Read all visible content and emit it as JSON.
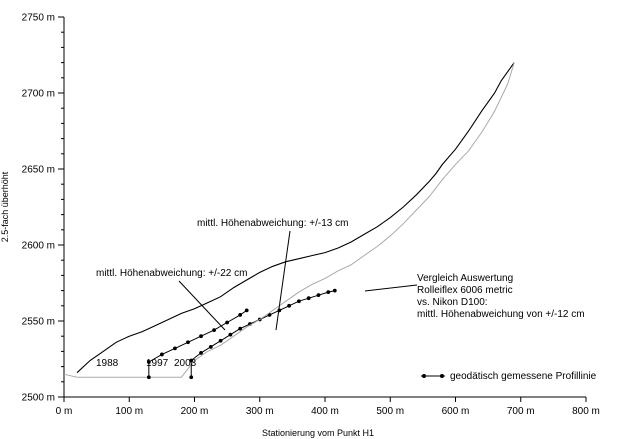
{
  "chart_data": {
    "type": "line",
    "xlabel": "Stationierung vom Punkt H1",
    "ylabel": "2.5-fach überhöht",
    "xlim": [
      0,
      800
    ],
    "ylim": [
      2500,
      2750
    ],
    "x_ticks": [
      0,
      100,
      200,
      300,
      400,
      500,
      600,
      700,
      800
    ],
    "x_tick_labels": [
      "0 m",
      "100 m",
      "200 m",
      "300 m",
      "400 m",
      "500 m",
      "600 m",
      "700 m",
      "800 m"
    ],
    "y_ticks": [
      2500,
      2550,
      2600,
      2650,
      2700,
      2750
    ],
    "y_tick_labels": [
      "2500 m",
      "2550 m",
      "2600 m",
      "2650 m",
      "2700 m",
      "2750 m"
    ],
    "y_minor_step": 10,
    "grid": false,
    "legend_position": "bottom-right",
    "series": [
      {
        "year_label": "1988",
        "color": "#000000",
        "x": [
          20,
          40,
          60,
          80,
          100,
          120,
          140,
          160,
          180,
          200,
          220,
          240,
          260,
          280,
          300,
          320,
          340,
          360,
          380,
          400,
          420,
          440,
          460,
          480,
          500,
          520,
          540,
          560,
          570,
          580,
          600,
          620,
          640,
          660,
          670,
          680,
          690
        ],
        "y": [
          2516,
          2524,
          2530,
          2536,
          2540,
          2543,
          2547,
          2551,
          2555,
          2558,
          2562,
          2566,
          2572,
          2577,
          2582,
          2586,
          2589,
          2591,
          2593,
          2595,
          2598,
          2602,
          2607,
          2612,
          2618,
          2625,
          2633,
          2642,
          2647,
          2653,
          2663,
          2675,
          2688,
          2700,
          2708,
          2714,
          2720
        ]
      },
      {
        "year_label": "1997",
        "color": "#000000",
        "marker": "dot",
        "x": [
          130,
          150,
          170,
          190,
          210,
          230,
          250,
          270,
          280
        ],
        "y": [
          2523,
          2528,
          2532,
          2536,
          2540,
          2544,
          2549,
          2554,
          2557
        ]
      },
      {
        "year_label": "2003",
        "color": "#000000",
        "marker": "dot",
        "x": [
          195,
          210,
          225,
          240,
          255,
          270,
          285,
          300,
          315,
          330,
          345,
          360,
          375,
          390,
          405,
          415
        ],
        "y": [
          2524,
          2529,
          2533,
          2537,
          2541,
          2545,
          2548,
          2551,
          2554,
          2557,
          2560,
          2563,
          2565,
          2567,
          2569,
          2570
        ]
      },
      {
        "color": "#aaaaaa",
        "x": [
          0,
          20,
          60,
          100,
          140,
          180,
          200,
          220,
          240,
          260,
          280,
          300,
          320,
          340,
          360,
          380,
          400,
          420,
          440,
          460,
          480,
          500,
          520,
          540,
          560,
          580,
          600,
          620,
          640,
          660,
          680,
          690
        ],
        "y": [
          2515,
          2513,
          2513,
          2513,
          2513,
          2513,
          2524,
          2530,
          2534,
          2540,
          2546,
          2551,
          2557,
          2563,
          2569,
          2574,
          2578,
          2583,
          2587,
          2593,
          2599,
          2606,
          2614,
          2623,
          2632,
          2643,
          2653,
          2662,
          2674,
          2688,
          2706,
          2720
        ]
      }
    ],
    "annotations": [
      {
        "text": "mittl. Höhenabweichung: +/-13 cm"
      },
      {
        "text": "mittl. Höhenabweichung: +/-22 cm"
      },
      {
        "text": "Vergleich Auswertung"
      },
      {
        "text": "Rolleiflex 6006 metric"
      },
      {
        "text": "vs. Nikon D100:"
      },
      {
        "text": "mittl. Höhenabweichung von +/-12 cm"
      }
    ],
    "legend": {
      "label": "geodätisch gemessene Profillinie"
    }
  }
}
